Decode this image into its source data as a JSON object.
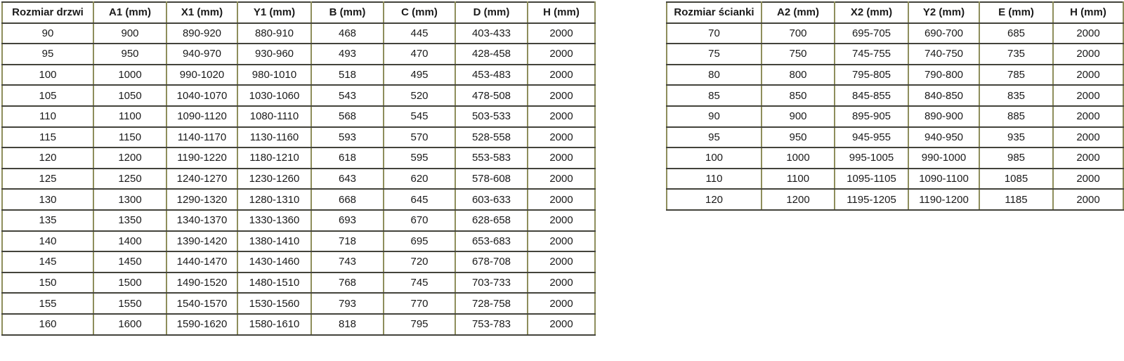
{
  "colors": {
    "grid_vertical_olive": "#8e8e5c",
    "grid_horizontal_dark": "#43433b",
    "text": "#1a1a1a",
    "background": "#ffffff"
  },
  "tables": [
    {
      "name": "door-size-table",
      "headers": [
        "Rozmiar drzwi",
        "A1 (mm)",
        "X1 (mm)",
        "Y1 (mm)",
        "B (mm)",
        "C (mm)",
        "D (mm)",
        "H (mm)"
      ],
      "rows": [
        [
          "90",
          "900",
          "890-920",
          "880-910",
          "468",
          "445",
          "403-433",
          "2000"
        ],
        [
          "95",
          "950",
          "940-970",
          "930-960",
          "493",
          "470",
          "428-458",
          "2000"
        ],
        [
          "100",
          "1000",
          "990-1020",
          "980-1010",
          "518",
          "495",
          "453-483",
          "2000"
        ],
        [
          "105",
          "1050",
          "1040-1070",
          "1030-1060",
          "543",
          "520",
          "478-508",
          "2000"
        ],
        [
          "110",
          "1100",
          "1090-1120",
          "1080-1110",
          "568",
          "545",
          "503-533",
          "2000"
        ],
        [
          "115",
          "1150",
          "1140-1170",
          "1130-1160",
          "593",
          "570",
          "528-558",
          "2000"
        ],
        [
          "120",
          "1200",
          "1190-1220",
          "1180-1210",
          "618",
          "595",
          "553-583",
          "2000"
        ],
        [
          "125",
          "1250",
          "1240-1270",
          "1230-1260",
          "643",
          "620",
          "578-608",
          "2000"
        ],
        [
          "130",
          "1300",
          "1290-1320",
          "1280-1310",
          "668",
          "645",
          "603-633",
          "2000"
        ],
        [
          "135",
          "1350",
          "1340-1370",
          "1330-1360",
          "693",
          "670",
          "628-658",
          "2000"
        ],
        [
          "140",
          "1400",
          "1390-1420",
          "1380-1410",
          "718",
          "695",
          "653-683",
          "2000"
        ],
        [
          "145",
          "1450",
          "1440-1470",
          "1430-1460",
          "743",
          "720",
          "678-708",
          "2000"
        ],
        [
          "150",
          "1500",
          "1490-1520",
          "1480-1510",
          "768",
          "745",
          "703-733",
          "2000"
        ],
        [
          "155",
          "1550",
          "1540-1570",
          "1530-1560",
          "793",
          "770",
          "728-758",
          "2000"
        ],
        [
          "160",
          "1600",
          "1590-1620",
          "1580-1610",
          "818",
          "795",
          "753-783",
          "2000"
        ]
      ]
    },
    {
      "name": "wall-size-table",
      "headers": [
        "Rozmiar ścianki",
        "A2 (mm)",
        "X2 (mm)",
        "Y2 (mm)",
        "E (mm)",
        "H (mm)"
      ],
      "rows": [
        [
          "70",
          "700",
          "695-705",
          "690-700",
          "685",
          "2000"
        ],
        [
          "75",
          "750",
          "745-755",
          "740-750",
          "735",
          "2000"
        ],
        [
          "80",
          "800",
          "795-805",
          "790-800",
          "785",
          "2000"
        ],
        [
          "85",
          "850",
          "845-855",
          "840-850",
          "835",
          "2000"
        ],
        [
          "90",
          "900",
          "895-905",
          "890-900",
          "885",
          "2000"
        ],
        [
          "95",
          "950",
          "945-955",
          "940-950",
          "935",
          "2000"
        ],
        [
          "100",
          "1000",
          "995-1005",
          "990-1000",
          "985",
          "2000"
        ],
        [
          "110",
          "1100",
          "1095-1105",
          "1090-1100",
          "1085",
          "2000"
        ],
        [
          "120",
          "1200",
          "1195-1205",
          "1190-1200",
          "1185",
          "2000"
        ]
      ]
    }
  ]
}
